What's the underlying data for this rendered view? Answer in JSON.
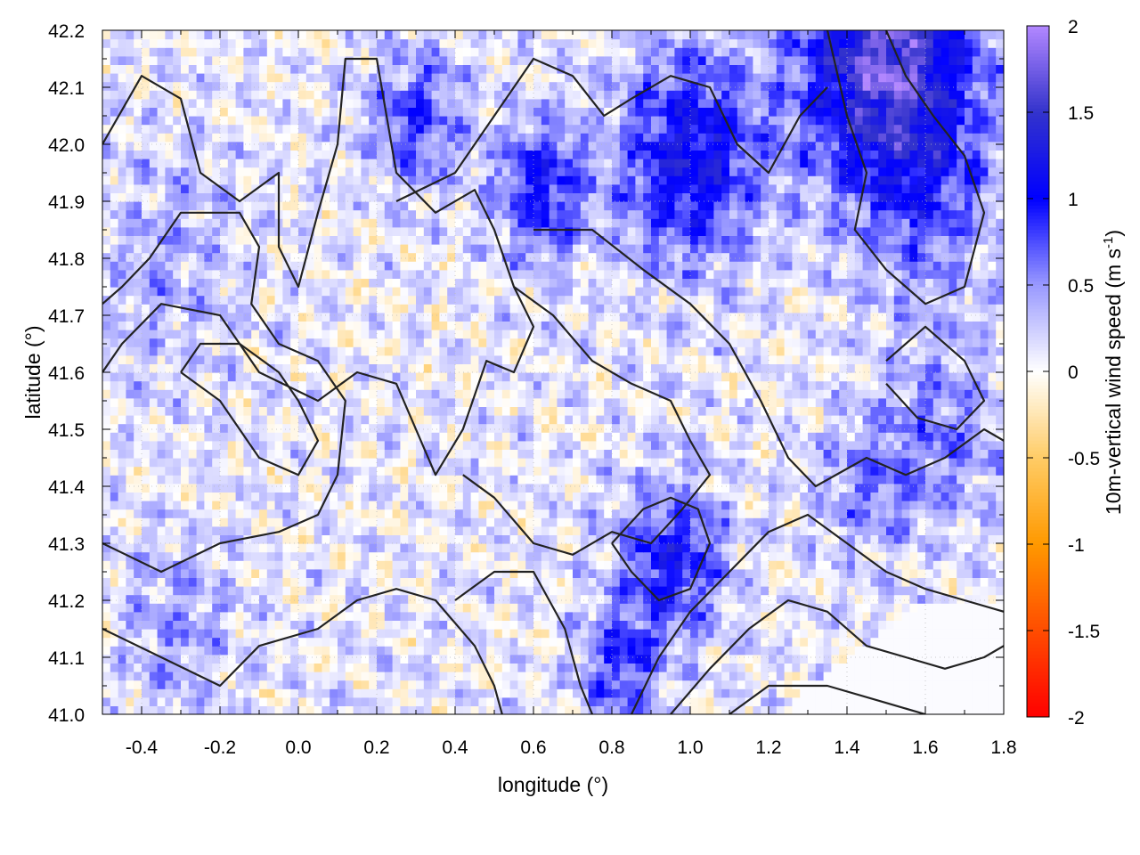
{
  "chart_data": {
    "type": "heatmap",
    "title": "",
    "xlabel": "longitude (°)",
    "ylabel": "latitude (°)",
    "colorbar_label": "10m-vertical wind speed (m s",
    "colorbar_label_exponent": "-1",
    "colorbar_label_suffix": ")",
    "xlim": [
      -0.5,
      1.8
    ],
    "ylim": [
      41.0,
      42.2
    ],
    "xticks": [
      -0.4,
      -0.2,
      0.0,
      0.2,
      0.4,
      0.6,
      0.8,
      1.0,
      1.2,
      1.4,
      1.6,
      1.8
    ],
    "xtick_labels": [
      "-0.4",
      "-0.2",
      "0.0",
      "0.2",
      "0.4",
      "0.6",
      "0.8",
      "1.0",
      "1.2",
      "1.4",
      "1.6",
      "1.8"
    ],
    "yticks": [
      41.0,
      41.1,
      41.2,
      41.3,
      41.4,
      41.5,
      41.6,
      41.7,
      41.8,
      41.9,
      42.0,
      42.1,
      42.2
    ],
    "ytick_labels": [
      "41.0",
      "41.1",
      "41.2",
      "41.3",
      "41.4",
      "41.5",
      "41.6",
      "41.7",
      "41.8",
      "41.9",
      "42.0",
      "42.1",
      "42.2"
    ],
    "color_range": [
      -2,
      2
    ],
    "colorbar_ticks": [
      2,
      1.5,
      1,
      0.5,
      0,
      -0.5,
      -1,
      -1.5,
      -2
    ],
    "colorbar_tick_labels": [
      "2",
      "1.5",
      "1",
      "0.5",
      "0",
      "-0.5",
      "-1",
      "-1.5",
      "-2"
    ],
    "colormap": [
      {
        "v": -2.0,
        "color": "#ff0000"
      },
      {
        "v": -1.0,
        "color": "#ff9900"
      },
      {
        "v": -0.5,
        "color": "#ffcc66"
      },
      {
        "v": 0.0,
        "color": "#ffffff"
      },
      {
        "v": 0.5,
        "color": "#9999ff"
      },
      {
        "v": 1.0,
        "color": "#0000ff"
      },
      {
        "v": 1.5,
        "color": "#3333cc"
      },
      {
        "v": 2.0,
        "color": "#b388ff"
      }
    ],
    "grid": true,
    "contour_color": "#222222",
    "hotspots": [
      {
        "lon": 1.5,
        "lat": 42.15,
        "amp": 1.6,
        "sigma": 0.22
      },
      {
        "lon": 1.0,
        "lat": 41.98,
        "amp": 1.1,
        "sigma": 0.18
      },
      {
        "lon": 0.62,
        "lat": 41.92,
        "amp": 0.9,
        "sigma": 0.12
      },
      {
        "lon": 0.3,
        "lat": 42.05,
        "amp": 0.7,
        "sigma": 0.12
      },
      {
        "lon": 0.95,
        "lat": 41.27,
        "amp": 0.9,
        "sigma": 0.14
      },
      {
        "lon": 0.82,
        "lat": 41.08,
        "amp": 0.7,
        "sigma": 0.1
      },
      {
        "lon": 1.45,
        "lat": 41.4,
        "amp": 0.5,
        "sigma": 0.12
      },
      {
        "lon": 1.65,
        "lat": 41.5,
        "amp": 0.5,
        "sigma": 0.15
      },
      {
        "lon": 1.6,
        "lat": 41.9,
        "amp": 0.5,
        "sigma": 0.18
      },
      {
        "lon": -0.3,
        "lat": 41.15,
        "amp": 0.35,
        "sigma": 0.15
      },
      {
        "lon": -0.35,
        "lat": 41.8,
        "amp": 0.3,
        "sigma": 0.2
      }
    ],
    "contours": [
      [
        [
          -0.5,
          42.0
        ],
        [
          -0.4,
          42.12
        ],
        [
          -0.3,
          42.08
        ],
        [
          -0.25,
          41.95
        ],
        [
          -0.15,
          41.9
        ],
        [
          -0.05,
          41.95
        ],
        [
          -0.05,
          41.82
        ],
        [
          0.0,
          41.75
        ],
        [
          0.05,
          41.88
        ],
        [
          0.1,
          42.0
        ],
        [
          0.12,
          42.15
        ],
        [
          0.2,
          42.15
        ],
        [
          0.25,
          41.95
        ],
        [
          0.35,
          41.88
        ],
        [
          0.45,
          41.92
        ],
        [
          0.5,
          41.85
        ],
        [
          0.55,
          41.75
        ],
        [
          0.6,
          41.68
        ],
        [
          0.55,
          41.6
        ],
        [
          0.48,
          41.62
        ],
        [
          0.42,
          41.5
        ],
        [
          0.35,
          41.42
        ],
        [
          0.3,
          41.5
        ],
        [
          0.25,
          41.58
        ],
        [
          0.15,
          41.6
        ],
        [
          0.05,
          41.55
        ],
        [
          -0.1,
          41.6
        ],
        [
          -0.2,
          41.7
        ],
        [
          -0.35,
          41.72
        ],
        [
          -0.45,
          41.65
        ],
        [
          -0.5,
          41.6
        ]
      ],
      [
        [
          -0.5,
          41.3
        ],
        [
          -0.35,
          41.25
        ],
        [
          -0.2,
          41.3
        ],
        [
          -0.05,
          41.32
        ],
        [
          0.05,
          41.35
        ],
        [
          0.1,
          41.42
        ],
        [
          0.12,
          41.55
        ],
        [
          0.05,
          41.62
        ],
        [
          -0.05,
          41.65
        ],
        [
          -0.12,
          41.72
        ],
        [
          -0.1,
          41.82
        ],
        [
          -0.15,
          41.88
        ],
        [
          -0.3,
          41.88
        ],
        [
          -0.38,
          41.8
        ],
        [
          -0.45,
          41.75
        ],
        [
          -0.5,
          41.72
        ]
      ],
      [
        [
          0.25,
          41.9
        ],
        [
          0.4,
          41.95
        ],
        [
          0.5,
          42.05
        ],
        [
          0.55,
          42.1
        ],
        [
          0.6,
          42.15
        ],
        [
          0.7,
          42.12
        ],
        [
          0.78,
          42.05
        ],
        [
          0.85,
          42.08
        ],
        [
          0.95,
          42.12
        ],
        [
          1.05,
          42.1
        ],
        [
          1.12,
          42.0
        ],
        [
          1.2,
          41.95
        ],
        [
          1.28,
          42.05
        ],
        [
          1.35,
          42.1
        ]
      ],
      [
        [
          0.6,
          41.85
        ],
        [
          0.75,
          41.85
        ],
        [
          0.88,
          41.78
        ],
        [
          1.0,
          41.72
        ],
        [
          1.1,
          41.65
        ],
        [
          1.18,
          41.55
        ],
        [
          1.25,
          41.45
        ],
        [
          1.32,
          41.4
        ],
        [
          1.45,
          41.45
        ],
        [
          1.55,
          41.42
        ],
        [
          1.65,
          41.45
        ],
        [
          1.75,
          41.5
        ],
        [
          1.8,
          41.48
        ]
      ],
      [
        [
          0.55,
          41.75
        ],
        [
          0.65,
          41.7
        ],
        [
          0.75,
          41.62
        ],
        [
          0.85,
          41.58
        ],
        [
          0.95,
          41.55
        ],
        [
          1.0,
          41.48
        ],
        [
          1.05,
          41.42
        ],
        [
          0.98,
          41.36
        ],
        [
          0.9,
          41.3
        ],
        [
          0.8,
          41.32
        ],
        [
          0.7,
          41.28
        ],
        [
          0.6,
          41.3
        ],
        [
          0.5,
          41.38
        ],
        [
          0.42,
          41.42
        ]
      ],
      [
        [
          0.4,
          41.2
        ],
        [
          0.5,
          41.25
        ],
        [
          0.6,
          41.25
        ],
        [
          0.68,
          41.15
        ],
        [
          0.72,
          41.05
        ],
        [
          0.75,
          41.0
        ]
      ],
      [
        [
          0.85,
          41.0
        ],
        [
          0.92,
          41.1
        ],
        [
          1.0,
          41.18
        ],
        [
          1.1,
          41.25
        ],
        [
          1.2,
          41.32
        ],
        [
          1.3,
          41.35
        ],
        [
          1.4,
          41.3
        ],
        [
          1.5,
          41.25
        ],
        [
          1.6,
          41.22
        ],
        [
          1.7,
          41.2
        ],
        [
          1.8,
          41.18
        ]
      ],
      [
        [
          0.95,
          41.0
        ],
        [
          1.05,
          41.08
        ],
        [
          1.15,
          41.15
        ],
        [
          1.25,
          41.2
        ],
        [
          1.35,
          41.18
        ],
        [
          1.45,
          41.12
        ],
        [
          1.55,
          41.1
        ],
        [
          1.65,
          41.08
        ],
        [
          1.75,
          41.1
        ],
        [
          1.8,
          41.12
        ]
      ],
      [
        [
          1.1,
          41.0
        ],
        [
          1.2,
          41.05
        ],
        [
          1.35,
          41.05
        ],
        [
          1.5,
          41.02
        ],
        [
          1.6,
          41.0
        ]
      ],
      [
        [
          -0.5,
          41.15
        ],
        [
          -0.35,
          41.1
        ],
        [
          -0.2,
          41.05
        ],
        [
          -0.1,
          41.12
        ],
        [
          0.05,
          41.15
        ],
        [
          0.15,
          41.2
        ],
        [
          0.25,
          41.22
        ],
        [
          0.35,
          41.2
        ],
        [
          0.45,
          41.12
        ],
        [
          0.5,
          41.05
        ],
        [
          0.52,
          41.0
        ]
      ],
      [
        [
          1.35,
          42.2
        ],
        [
          1.4,
          42.05
        ],
        [
          1.45,
          41.95
        ],
        [
          1.42,
          41.85
        ],
        [
          1.5,
          41.78
        ],
        [
          1.6,
          41.72
        ],
        [
          1.7,
          41.75
        ],
        [
          1.75,
          41.88
        ],
        [
          1.7,
          41.98
        ],
        [
          1.62,
          42.05
        ],
        [
          1.55,
          42.12
        ],
        [
          1.5,
          42.2
        ]
      ],
      [
        [
          1.5,
          41.62
        ],
        [
          1.6,
          41.68
        ],
        [
          1.7,
          41.62
        ],
        [
          1.75,
          41.55
        ],
        [
          1.68,
          41.5
        ],
        [
          1.58,
          41.52
        ],
        [
          1.5,
          41.58
        ]
      ],
      [
        [
          0.8,
          41.3
        ],
        [
          0.85,
          41.25
        ],
        [
          0.92,
          41.2
        ],
        [
          1.0,
          41.22
        ],
        [
          1.05,
          41.3
        ],
        [
          1.02,
          41.36
        ],
        [
          0.95,
          41.38
        ],
        [
          0.88,
          41.36
        ],
        [
          0.8,
          41.3
        ]
      ],
      [
        [
          -0.3,
          41.6
        ],
        [
          -0.2,
          41.55
        ],
        [
          -0.1,
          41.45
        ],
        [
          0.0,
          41.42
        ],
        [
          0.05,
          41.48
        ],
        [
          0.0,
          41.55
        ],
        [
          -0.05,
          41.6
        ],
        [
          -0.15,
          41.65
        ],
        [
          -0.25,
          41.65
        ],
        [
          -0.3,
          41.6
        ]
      ]
    ]
  }
}
